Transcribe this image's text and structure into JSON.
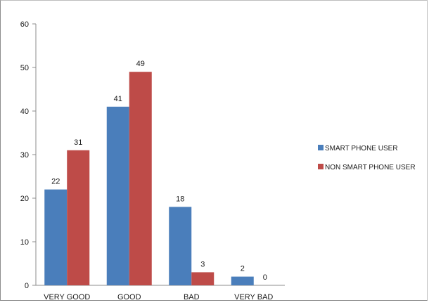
{
  "chart_data": {
    "type": "bar",
    "categories": [
      "VERY GOOD",
      "GOOD",
      "BAD",
      "VERY BAD"
    ],
    "series": [
      {
        "name": "SMART PHONE USER",
        "values": [
          22,
          41,
          18,
          2
        ],
        "color": "#4a7ebb"
      },
      {
        "name": "NON SMART PHONE USER",
        "values": [
          31,
          49,
          3,
          0
        ],
        "color": "#be4b48"
      }
    ],
    "ylim": [
      0,
      60
    ],
    "yticks": [
      0,
      10,
      20,
      30,
      40,
      50,
      60
    ],
    "grid": false,
    "legend_position": "right"
  }
}
